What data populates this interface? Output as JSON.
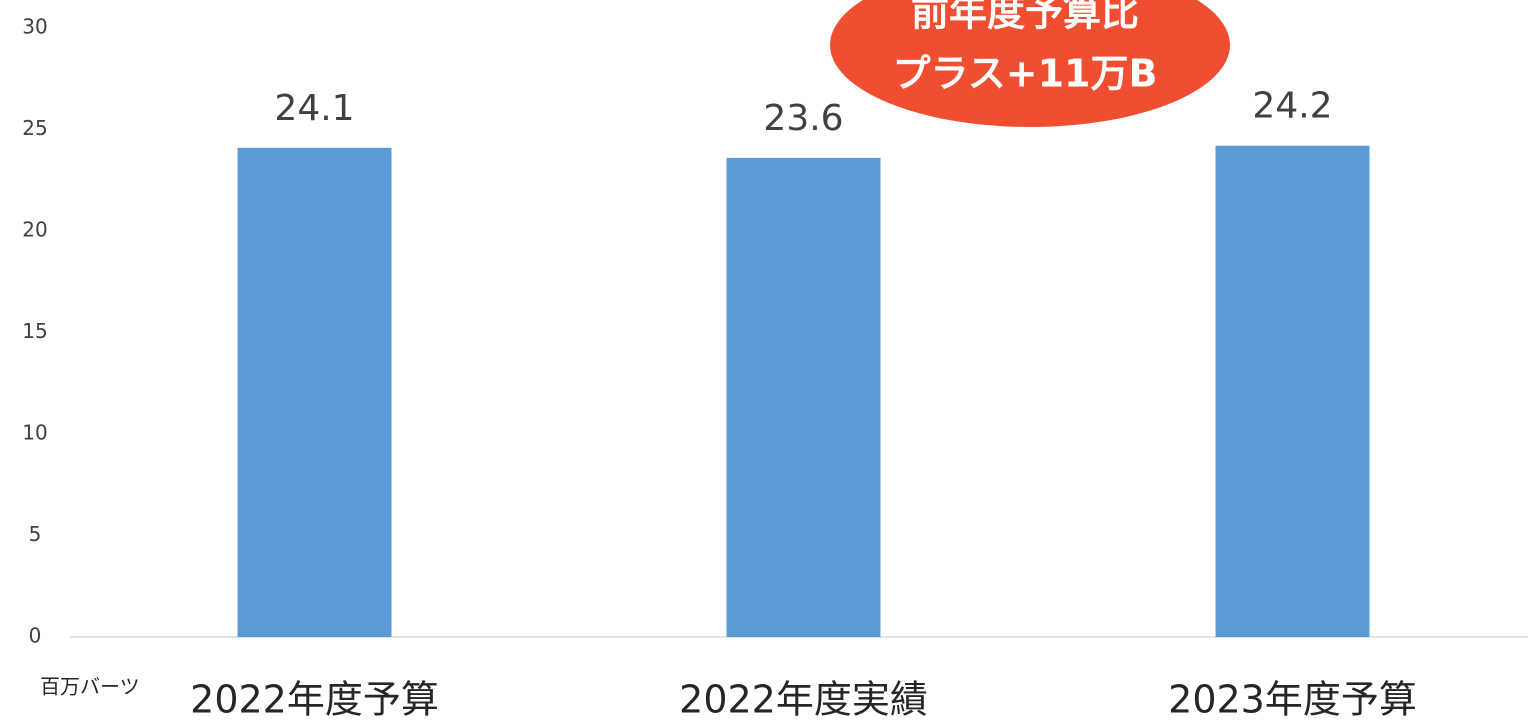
{
  "chart_data": {
    "type": "bar",
    "y_label": "百万バーツ",
    "annotation": [
      "前年度予算比",
      "プラス+11万B"
    ],
    "categories": [
      "2022年度予算",
      "2022年度実績",
      "2023年度予算"
    ],
    "values": [
      24.1,
      23.6,
      24.2
    ],
    "color": "#5b9bd5",
    "ylim": [
      0,
      30
    ],
    "yticks": [
      0,
      5,
      10,
      15,
      20,
      25,
      30
    ],
    "grid": false
  }
}
